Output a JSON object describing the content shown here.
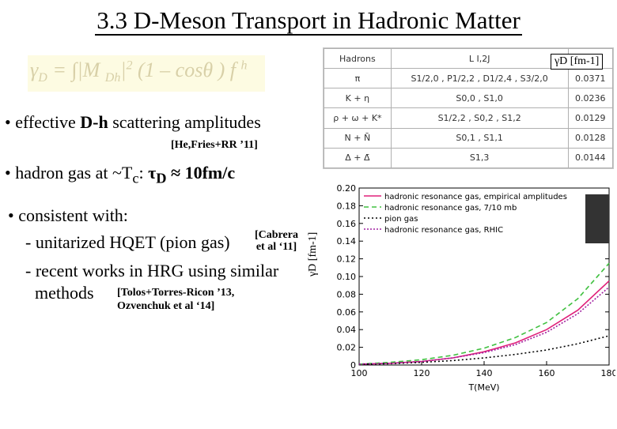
{
  "title": "3.3 D-Meson Transport in Hadronic Matter",
  "formula": {
    "lhs": "γ",
    "lhs_sub": "D",
    "eq": " = ∫|M ",
    "m_sub": "Dh",
    "bar": "|",
    "sq": "2",
    "rest": " (1 – cosθ ) f ",
    "f_sup": "h"
  },
  "bullets": {
    "b1_prefix": "• effective ",
    "b1_bold": "D-h",
    "b1_suffix": " scattering amplitudes",
    "cite1": "[He,Fries+RR ’11]",
    "b2_prefix": "•  hadron gas at ~T",
    "b2_sub": "c",
    "b2_colon": ":  ",
    "b2_tau": "τ",
    "b2_tau_sub": "D",
    "b2_value": " ≈ 10fm/c",
    "b3": "• consistent with:",
    "b3_line1": "- unitarized HQET (pion gas)",
    "cite2_a": "[Cabrera",
    "cite2_b": "et al ‘11]",
    "b3_line2": "- recent works in HRG using similar",
    "b3_line3": "methods",
    "cite3_a": "[Tolos+Torres-Ricon ’13,",
    "cite3_b": "Ozvenchuk  et al ‘14]"
  },
  "table": {
    "headers": [
      "Hadrons",
      "L I,2J",
      "γD [fm⁻¹]"
    ],
    "rows": [
      [
        "π",
        "S1/2,0 ,  P1/2,2 ,  D1/2,4 ,  S3/2,0",
        "0.0371"
      ],
      [
        "K + η",
        "S0,0 ,  S1,0",
        "0.0236"
      ],
      [
        "ρ + ω + K*",
        "S1/2,2 ,  S0,2 ,  S1,2",
        "0.0129"
      ],
      [
        "N + N̄",
        "S0,1 ,  S1,1",
        "0.0128"
      ],
      [
        "Δ + Δ̄",
        "S1,3",
        "0.0144"
      ]
    ]
  },
  "gamma_label": "γD [fm-1]",
  "plot_ylabel": "γD [fm-1]",
  "chart_data": {
    "type": "line",
    "xlabel": "T(MeV)",
    "ylabel": "γD [fm-1]",
    "xlim": [
      100,
      180
    ],
    "ylim": [
      0,
      0.2
    ],
    "xticks": [
      "100",
      "120",
      "140",
      "160",
      "180"
    ],
    "yticks": [
      "0",
      "0.02",
      "0.04",
      "0.06",
      "0.08",
      "0.10",
      "0.12",
      "0.14",
      "0.16",
      "0.18",
      "0.20"
    ],
    "x": [
      100,
      110,
      120,
      130,
      140,
      150,
      160,
      170,
      180
    ],
    "series": [
      {
        "name": "hadronic resonance gas, empirical amplitudes",
        "color": "#e0207a",
        "dash": "",
        "values": [
          0.001,
          0.002,
          0.004,
          0.008,
          0.015,
          0.025,
          0.04,
          0.062,
          0.095
        ]
      },
      {
        "name": "hadronic resonance gas, 7/10 mb",
        "color": "#40c040",
        "dash": "6,4",
        "values": [
          0.001,
          0.003,
          0.006,
          0.011,
          0.019,
          0.031,
          0.048,
          0.075,
          0.115
        ]
      },
      {
        "name": "pion gas",
        "color": "#000000",
        "dash": "2,3",
        "values": [
          0.0008,
          0.0015,
          0.003,
          0.005,
          0.008,
          0.012,
          0.017,
          0.024,
          0.033
        ]
      },
      {
        "name": "hadronic resonance gas, RHIC",
        "color": "#a020a0",
        "dash": "2,2",
        "values": [
          0.001,
          0.002,
          0.004,
          0.008,
          0.014,
          0.023,
          0.037,
          0.058,
          0.088
        ]
      }
    ],
    "legend": "top-left"
  }
}
